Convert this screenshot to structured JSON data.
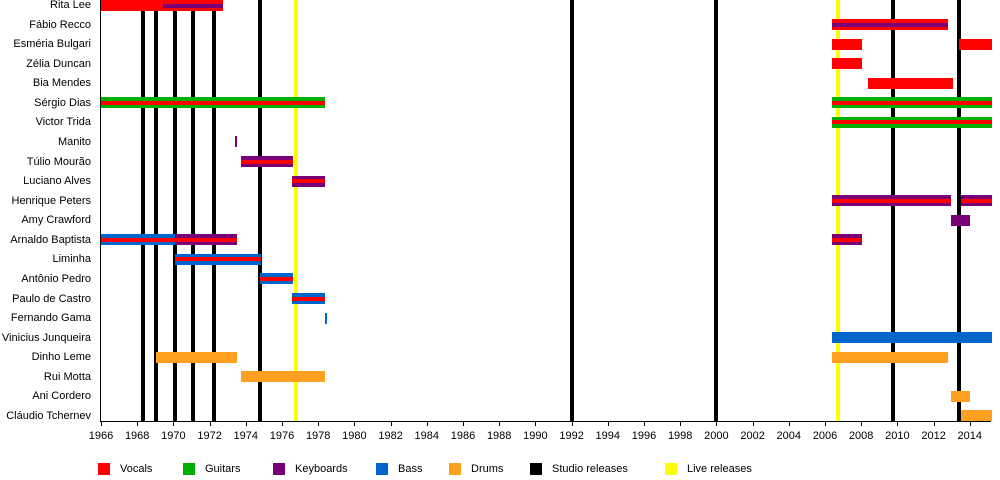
{
  "chart_data": {
    "type": "timeline",
    "xlim": [
      1966,
      2015.2
    ],
    "ticks": [
      1966,
      1968,
      1970,
      1972,
      1974,
      1976,
      1978,
      1980,
      1982,
      1984,
      1986,
      1988,
      1990,
      1992,
      1994,
      1996,
      1998,
      2000,
      2002,
      2004,
      2006,
      2008,
      2010,
      2012,
      2014
    ],
    "roles": {
      "vocals": {
        "label": "Vocals",
        "color": "#ff0000"
      },
      "guitars": {
        "label": "Guitars",
        "color": "#00b000"
      },
      "keyboards": {
        "label": "Keyboards",
        "color": "#7a0078"
      },
      "bass": {
        "label": "Bass",
        "color": "#0066cc"
      },
      "drums": {
        "label": "Drums",
        "color": "#ffa020"
      },
      "studio": {
        "label": "Studio releases",
        "color": "#000000"
      },
      "live": {
        "label": "Live releases",
        "color": "#ffff00"
      }
    },
    "legend_order": [
      "vocals",
      "guitars",
      "keyboards",
      "bass",
      "drums",
      "studio",
      "live"
    ],
    "studio_releases": [
      1968.3,
      1969.05,
      1970.1,
      1971.1,
      1972.25,
      1974.8,
      1992.0,
      2000.0,
      2009.75,
      2013.4
    ],
    "live_releases": [
      1976.8,
      2006.7
    ],
    "members": [
      {
        "name": "Rita Lee",
        "bars": [
          {
            "role": "vocals",
            "start": 1966,
            "end": 1972.74
          },
          {
            "role": "vocals",
            "start": 1969.4,
            "end": 1972.74,
            "inner": "keyboards",
            "innerOnly": true
          }
        ]
      },
      {
        "name": "Fábio Recco",
        "bars": [
          {
            "role": "vocals",
            "start": 2006.4,
            "end": 2012.8,
            "inner": "keyboards"
          }
        ]
      },
      {
        "name": "Esméria Bulgari",
        "bars": [
          {
            "role": "vocals",
            "start": 2006.4,
            "end": 2008.05
          },
          {
            "role": "vocals",
            "start": 2013.4,
            "end": 2015.2
          }
        ]
      },
      {
        "name": "Zélia Duncan",
        "bars": [
          {
            "role": "vocals",
            "start": 2006.4,
            "end": 2008.05
          }
        ]
      },
      {
        "name": "Bia Mendes",
        "bars": [
          {
            "role": "vocals",
            "start": 2008.35,
            "end": 2013.05
          }
        ]
      },
      {
        "name": "Sérgio Dias",
        "bars": [
          {
            "role": "guitars",
            "start": 1966,
            "end": 1978.4,
            "inner": "vocals"
          },
          {
            "role": "guitars",
            "start": 2006.4,
            "end": 2015.2,
            "inner": "vocals"
          }
        ]
      },
      {
        "name": "Victor Trida",
        "bars": [
          {
            "role": "guitars",
            "start": 2006.4,
            "end": 2015.2,
            "inner": "vocals"
          }
        ]
      },
      {
        "name": "Manito",
        "bars": [
          {
            "role": "keyboards",
            "start": 1973.4,
            "end": 1973.5
          }
        ]
      },
      {
        "name": "Túlio Mourão",
        "bars": [
          {
            "role": "keyboards",
            "start": 1973.75,
            "end": 1976.6,
            "inner": "vocals"
          }
        ]
      },
      {
        "name": "Luciano Alves",
        "bars": [
          {
            "role": "keyboards",
            "start": 1976.55,
            "end": 1978.4,
            "inner": "vocals"
          }
        ]
      },
      {
        "name": "Henrique Peters",
        "bars": [
          {
            "role": "keyboards",
            "start": 2006.4,
            "end": 2012.95,
            "inner": "vocals"
          },
          {
            "role": "keyboards",
            "start": 2013.5,
            "end": 2015.2,
            "inner": "vocals"
          }
        ]
      },
      {
        "name": "Amy Crawford",
        "bars": [
          {
            "role": "keyboards",
            "start": 2012.95,
            "end": 2014.0
          }
        ]
      },
      {
        "name": "Arnaldo Baptista",
        "bars": [
          {
            "role": "bass",
            "start": 1966,
            "end": 1970.1,
            "inner": "vocals"
          },
          {
            "role": "keyboards",
            "start": 1970.1,
            "end": 1973.5,
            "inner": "vocals"
          },
          {
            "role": "keyboards",
            "start": 2006.4,
            "end": 2008.05,
            "inner": "vocals"
          }
        ]
      },
      {
        "name": "Liminha",
        "bars": [
          {
            "role": "bass",
            "start": 1970.1,
            "end": 1974.85,
            "inner": "vocals"
          }
        ]
      },
      {
        "name": "Antônio Pedro",
        "bars": [
          {
            "role": "bass",
            "start": 1974.8,
            "end": 1976.6,
            "inner": "vocals"
          }
        ]
      },
      {
        "name": "Paulo de Castro",
        "bars": [
          {
            "role": "bass",
            "start": 1976.55,
            "end": 1978.4,
            "inner": "vocals"
          }
        ]
      },
      {
        "name": "Fernando Gama",
        "bars": [
          {
            "role": "bass",
            "start": 1978.35,
            "end": 1978.42,
            "thin": true
          }
        ]
      },
      {
        "name": "Vinicius Junqueira",
        "bars": [
          {
            "role": "bass",
            "start": 2006.4,
            "end": 2015.2
          }
        ]
      },
      {
        "name": "Dinho Leme",
        "bars": [
          {
            "role": "drums",
            "start": 1969.05,
            "end": 1973.5
          },
          {
            "role": "drums",
            "start": 2006.4,
            "end": 2012.8
          }
        ]
      },
      {
        "name": "Rui Motta",
        "bars": [
          {
            "role": "drums",
            "start": 1973.75,
            "end": 1978.4
          }
        ]
      },
      {
        "name": "Ani Cordero",
        "bars": [
          {
            "role": "drums",
            "start": 2012.95,
            "end": 2014.0
          }
        ]
      },
      {
        "name": "Cláudio Tchernev",
        "bars": [
          {
            "role": "drums",
            "start": 2013.5,
            "end": 2015.2
          }
        ]
      }
    ]
  }
}
